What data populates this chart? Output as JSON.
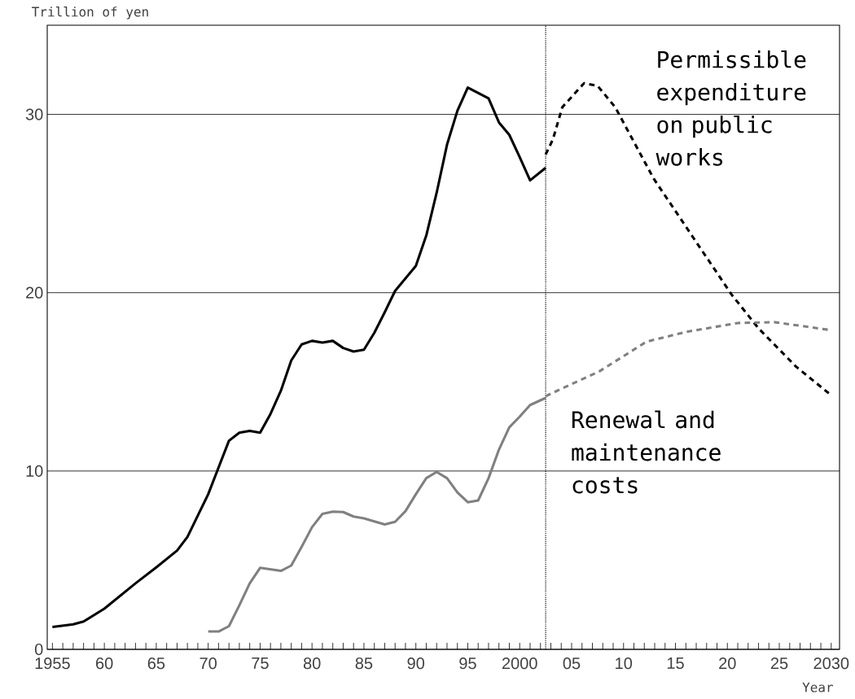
{
  "chart_data": {
    "type": "line",
    "xlabel": "Year",
    "ylabel": "Trillion of yen",
    "xlim": [
      1954.5,
      2030.8
    ],
    "ylim": [
      0,
      35
    ],
    "xticks": [
      {
        "value": 1955,
        "label": "1955"
      },
      {
        "value": 1956,
        "label": null
      },
      {
        "value": 1957,
        "label": null
      },
      {
        "value": 1958,
        "label": null
      },
      {
        "value": 1959,
        "label": null
      },
      {
        "value": 1960,
        "label": "60"
      },
      {
        "value": 1961,
        "label": null
      },
      {
        "value": 1962,
        "label": null
      },
      {
        "value": 1963,
        "label": null
      },
      {
        "value": 1964,
        "label": null
      },
      {
        "value": 1965,
        "label": "65"
      },
      {
        "value": 1966,
        "label": null
      },
      {
        "value": 1967,
        "label": null
      },
      {
        "value": 1968,
        "label": null
      },
      {
        "value": 1969,
        "label": null
      },
      {
        "value": 1970,
        "label": "70"
      },
      {
        "value": 1971,
        "label": null
      },
      {
        "value": 1972,
        "label": null
      },
      {
        "value": 1973,
        "label": null
      },
      {
        "value": 1974,
        "label": null
      },
      {
        "value": 1975,
        "label": "75"
      },
      {
        "value": 1976,
        "label": null
      },
      {
        "value": 1977,
        "label": null
      },
      {
        "value": 1978,
        "label": null
      },
      {
        "value": 1979,
        "label": null
      },
      {
        "value": 1980,
        "label": "80"
      },
      {
        "value": 1981,
        "label": null
      },
      {
        "value": 1982,
        "label": null
      },
      {
        "value": 1983,
        "label": null
      },
      {
        "value": 1984,
        "label": null
      },
      {
        "value": 1985,
        "label": "85"
      },
      {
        "value": 1986,
        "label": null
      },
      {
        "value": 1987,
        "label": null
      },
      {
        "value": 1988,
        "label": null
      },
      {
        "value": 1989,
        "label": null
      },
      {
        "value": 1990,
        "label": "90"
      },
      {
        "value": 1991,
        "label": null
      },
      {
        "value": 1992,
        "label": null
      },
      {
        "value": 1993,
        "label": null
      },
      {
        "value": 1994,
        "label": null
      },
      {
        "value": 1995,
        "label": "95"
      },
      {
        "value": 1996,
        "label": null
      },
      {
        "value": 1997,
        "label": null
      },
      {
        "value": 1998,
        "label": null
      },
      {
        "value": 1999,
        "label": null
      },
      {
        "value": 2000,
        "label": "2000"
      },
      {
        "value": 2001,
        "label": null
      },
      {
        "value": 2002,
        "label": null
      },
      {
        "value": 2003,
        "label": null
      },
      {
        "value": 2004,
        "label": null
      },
      {
        "value": 2005,
        "label": "05"
      },
      {
        "value": 2006,
        "label": null
      },
      {
        "value": 2007,
        "label": null
      },
      {
        "value": 2008,
        "label": null
      },
      {
        "value": 2009,
        "label": null
      },
      {
        "value": 2010,
        "label": "10"
      },
      {
        "value": 2011,
        "label": null
      },
      {
        "value": 2012,
        "label": null
      },
      {
        "value": 2013,
        "label": null
      },
      {
        "value": 2014,
        "label": null
      },
      {
        "value": 2015,
        "label": "15"
      },
      {
        "value": 2016,
        "label": null
      },
      {
        "value": 2017,
        "label": null
      },
      {
        "value": 2018,
        "label": null
      },
      {
        "value": 2019,
        "label": null
      },
      {
        "value": 2020,
        "label": "20"
      },
      {
        "value": 2021,
        "label": null
      },
      {
        "value": 2022,
        "label": null
      },
      {
        "value": 2023,
        "label": null
      },
      {
        "value": 2024,
        "label": null
      },
      {
        "value": 2025,
        "label": "25"
      },
      {
        "value": 2026,
        "label": null
      },
      {
        "value": 2027,
        "label": null
      },
      {
        "value": 2028,
        "label": null
      },
      {
        "value": 2029,
        "label": null
      },
      {
        "value": 2030,
        "label": "2030"
      }
    ],
    "yticks": [
      0,
      10,
      20,
      30
    ],
    "grid": "y",
    "ref_lines": [
      {
        "axis": "x",
        "value": 2002.5,
        "color": "#000000",
        "line_style": "dotted"
      }
    ],
    "series": [
      {
        "color": "#000000",
        "line_style": "solid",
        "x": [
          1955,
          1957,
          1958,
          1960,
          1963,
          1965,
          1967,
          1968,
          1969,
          1970,
          1971,
          1972,
          1973,
          1974,
          1975,
          1976,
          1977,
          1978,
          1979,
          1980,
          1981,
          1982,
          1983,
          1984,
          1985,
          1986,
          1987,
          1988,
          1989,
          1990,
          1991,
          1992,
          1993,
          1994,
          1995,
          1997,
          1998,
          1999,
          2000,
          2001,
          2002.5
        ],
        "values": [
          1.25,
          1.4,
          1.56,
          2.28,
          3.7,
          4.6,
          5.54,
          6.3,
          7.5,
          8.7,
          10.2,
          11.7,
          12.15,
          12.25,
          12.15,
          13.2,
          14.5,
          16.2,
          17.1,
          17.3,
          17.2,
          17.3,
          16.9,
          16.7,
          16.8,
          17.75,
          18.9,
          20.1,
          20.8,
          21.5,
          23.2,
          25.6,
          28.3,
          30.2,
          31.5,
          30.9,
          29.55,
          28.85,
          27.6,
          26.3,
          27.0
        ]
      },
      {
        "name": "Permissible expenditure on public works",
        "color": "#000000",
        "line_style": "dashed",
        "x": [
          2002.5,
          2003.2,
          2004.1,
          2006.2,
          2007.5,
          2009.2,
          2012.9,
          2016.7,
          2020.4,
          2023.0,
          2026.6,
          2030
        ],
        "values": [
          27.75,
          28.6,
          30.4,
          31.75,
          31.6,
          30.4,
          26.4,
          23.1,
          19.9,
          18.0,
          15.86,
          14.25
        ]
      },
      {
        "color": "#808080",
        "line_style": "solid",
        "x": [
          1970,
          1971,
          1972,
          1973,
          1974,
          1975,
          1977,
          1978,
          1979,
          1980,
          1981,
          1982,
          1983,
          1984,
          1985,
          1987,
          1988,
          1989,
          1990,
          1991,
          1992,
          1993,
          1994,
          1995,
          1996,
          1997,
          1998,
          1999,
          2000,
          2001,
          2002.5
        ],
        "values": [
          1.0,
          1.0,
          1.3,
          2.47,
          3.7,
          4.57,
          4.4,
          4.7,
          5.75,
          6.85,
          7.6,
          7.72,
          7.7,
          7.45,
          7.35,
          7.0,
          7.15,
          7.75,
          8.7,
          9.6,
          9.95,
          9.6,
          8.8,
          8.25,
          8.35,
          9.6,
          11.2,
          12.45,
          13.05,
          13.7,
          14.1
        ]
      },
      {
        "name": "Renewal and maintenance costs",
        "color": "#808080",
        "line_style": "dashed",
        "x": [
          2002.5,
          2007.7,
          2012.2,
          2016.0,
          2021.0,
          2024.5,
          2030
        ],
        "values": [
          14.2,
          15.6,
          17.25,
          17.8,
          18.3,
          18.35,
          17.9
        ]
      }
    ]
  }
}
